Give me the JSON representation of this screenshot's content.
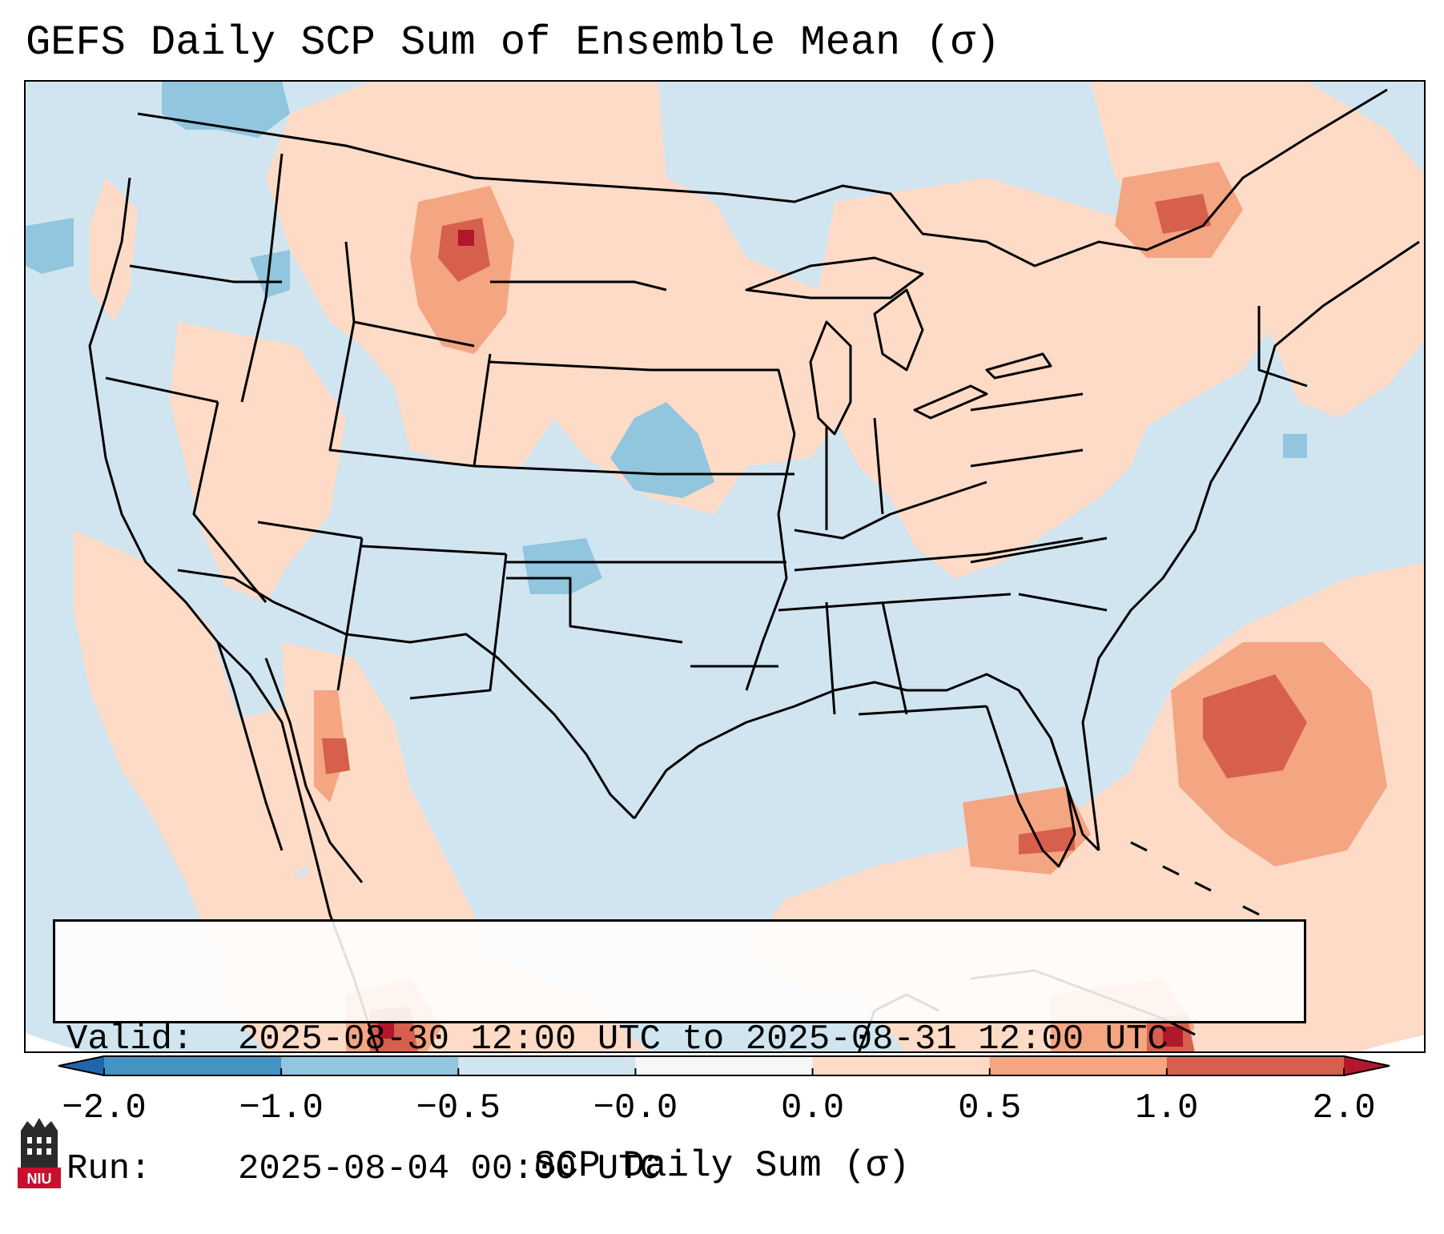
{
  "title": "GEFS Daily SCP Sum of Ensemble Mean (σ)",
  "info": {
    "valid_label": "Valid:",
    "valid_value": "2025-08-30 12:00 UTC to 2025-08-31 12:00 UTC",
    "run_label": "Run:",
    "run_value": "2025-08-04 00:00 UTC"
  },
  "colorbar": {
    "label": "SCP Daily Sum (σ)",
    "ticks": [
      "−2.0",
      "−1.0",
      "−0.5",
      "−0.0",
      "0.0",
      "0.5",
      "1.0",
      "2.0"
    ],
    "bins": [
      {
        "from": -2.0,
        "to": -1.0,
        "color": "#4393c3"
      },
      {
        "from": -1.0,
        "to": -0.5,
        "color": "#92c5de"
      },
      {
        "from": -0.5,
        "to": -0.0,
        "color": "#d1e5f0"
      },
      {
        "from": -0.0,
        "to": 0.0,
        "color": "#f7f7f7"
      },
      {
        "from": 0.0,
        "to": 0.5,
        "color": "#fddbc7"
      },
      {
        "from": 0.5,
        "to": 1.0,
        "color": "#f4a582"
      },
      {
        "from": 1.0,
        "to": 2.0,
        "color": "#d6604d"
      }
    ],
    "under_color": "#2166ac",
    "over_color": "#b2182b"
  },
  "map": {
    "background_field_color": "#d1e5f0",
    "positive_color": "#fddbc7",
    "moderate_color": "#f4a582",
    "strong_color": "#d6604d",
    "extreme_color": "#b2182b",
    "negative_color": "#92c5de",
    "border_color": "#000000"
  },
  "logo": {
    "text": "NIU",
    "color": "#c8102e"
  }
}
